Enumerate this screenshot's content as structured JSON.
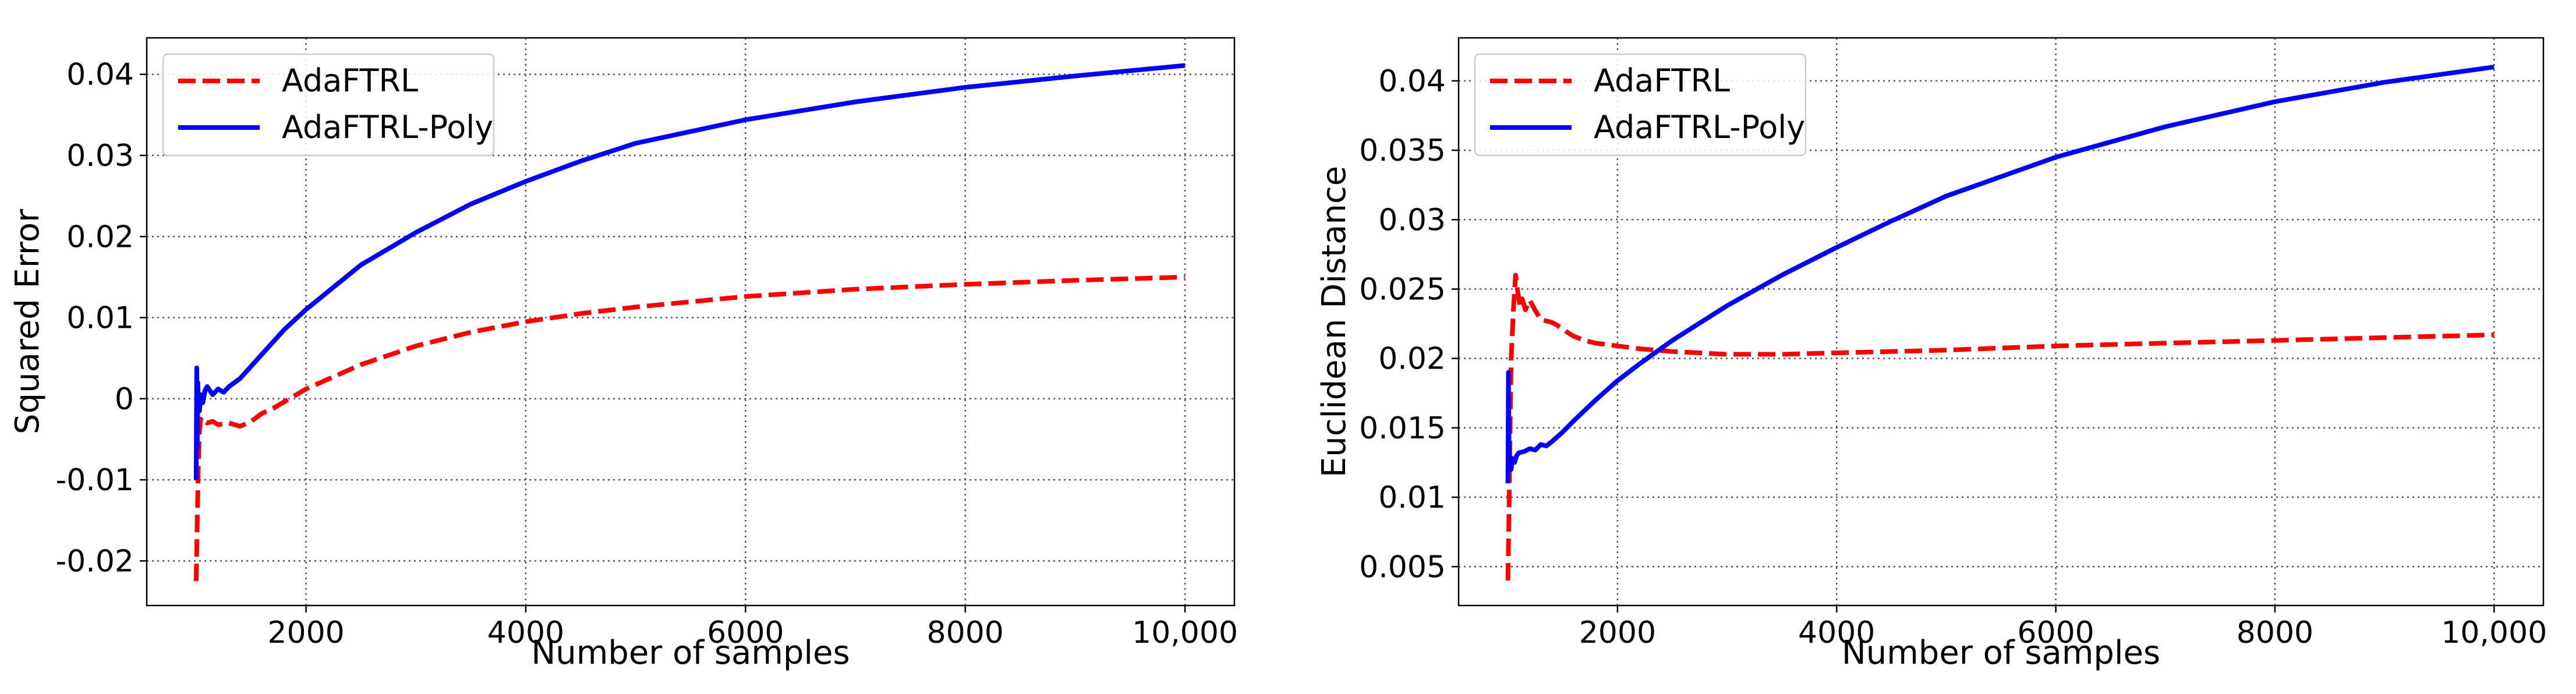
{
  "chart_data": [
    {
      "type": "line",
      "xlabel": "Number of samples",
      "ylabel": "Squared Error",
      "xlim": [
        550,
        10450
      ],
      "ylim": [
        -0.0255,
        0.0445
      ],
      "xticks": [
        {
          "v": 2000,
          "label": "2000"
        },
        {
          "v": 4000,
          "label": "4000"
        },
        {
          "v": 6000,
          "label": "6000"
        },
        {
          "v": 8000,
          "label": "8000"
        },
        {
          "v": 10000,
          "label": "10,000"
        }
      ],
      "yticks": [
        {
          "v": -0.02,
          "label": "-0.02"
        },
        {
          "v": -0.01,
          "label": "-0.01"
        },
        {
          "v": 0,
          "label": "0"
        },
        {
          "v": 0.01,
          "label": "0.01"
        },
        {
          "v": 0.02,
          "label": "0.02"
        },
        {
          "v": 0.03,
          "label": "0.03"
        },
        {
          "v": 0.04,
          "label": "0.04"
        }
      ],
      "grid": true,
      "legend_position": "upper-left",
      "series": [
        {
          "name": "AdaFTRL",
          "color": "#ff0000",
          "dashed": true,
          "x": [
            1000,
            1010,
            1020,
            1030,
            1040,
            1060,
            1080,
            1100,
            1150,
            1200,
            1300,
            1400,
            1500,
            1600,
            1700,
            2000,
            2500,
            3000,
            3500,
            4000,
            4500,
            5000,
            6000,
            7000,
            8000,
            9000,
            10000
          ],
          "y": [
            -0.0225,
            -0.015,
            -0.008,
            -0.004,
            -0.0025,
            -0.003,
            -0.0028,
            -0.003,
            -0.0028,
            -0.0032,
            -0.003,
            -0.0034,
            -0.0028,
            -0.0018,
            -0.0012,
            0.0012,
            0.0042,
            0.0065,
            0.0082,
            0.0095,
            0.0105,
            0.0113,
            0.0126,
            0.0135,
            0.0141,
            0.0146,
            0.015
          ]
        },
        {
          "name": "AdaFTRL-Poly",
          "color": "#0000ff",
          "dashed": false,
          "x": [
            1000,
            1005,
            1010,
            1015,
            1020,
            1030,
            1040,
            1060,
            1080,
            1100,
            1150,
            1200,
            1250,
            1300,
            1350,
            1400,
            1500,
            1600,
            1800,
            2000,
            2500,
            3000,
            3500,
            4000,
            4500,
            5000,
            6000,
            7000,
            8000,
            9000,
            10000
          ],
          "y": [
            -0.01,
            0.0038,
            -0.006,
            0.002,
            -0.001,
            -0.0015,
            0.0005,
            -0.0005,
            0.001,
            0.0015,
            0.0005,
            0.0012,
            0.0008,
            0.0015,
            0.002,
            0.0025,
            0.004,
            0.0055,
            0.0085,
            0.011,
            0.0165,
            0.0205,
            0.024,
            0.0268,
            0.0293,
            0.0315,
            0.0344,
            0.0366,
            0.0384,
            0.0398,
            0.0411
          ]
        }
      ]
    },
    {
      "type": "line",
      "xlabel": "Number of samples",
      "ylabel": "Euclidean Distance",
      "xlim": [
        550,
        10450
      ],
      "ylim": [
        0.0022,
        0.0431
      ],
      "xticks": [
        {
          "v": 2000,
          "label": "2000"
        },
        {
          "v": 4000,
          "label": "4000"
        },
        {
          "v": 6000,
          "label": "6000"
        },
        {
          "v": 8000,
          "label": "8000"
        },
        {
          "v": 10000,
          "label": "10,000"
        }
      ],
      "yticks": [
        {
          "v": 0.005,
          "label": "0.005"
        },
        {
          "v": 0.01,
          "label": "0.01"
        },
        {
          "v": 0.015,
          "label": "0.015"
        },
        {
          "v": 0.02,
          "label": "0.02"
        },
        {
          "v": 0.025,
          "label": "0.025"
        },
        {
          "v": 0.03,
          "label": "0.03"
        },
        {
          "v": 0.035,
          "label": "0.035"
        },
        {
          "v": 0.04,
          "label": "0.04"
        }
      ],
      "grid": true,
      "legend_position": "upper-left",
      "series": [
        {
          "name": "AdaFTRL",
          "color": "#ff0000",
          "dashed": true,
          "x": [
            1000,
            1010,
            1020,
            1030,
            1050,
            1070,
            1090,
            1110,
            1130,
            1160,
            1200,
            1240,
            1270,
            1300,
            1350,
            1400,
            1450,
            1500,
            1600,
            1700,
            1800,
            2000,
            2200,
            2500,
            3000,
            3500,
            4000,
            4500,
            5000,
            6000,
            7000,
            8000,
            9000,
            10000
          ],
          "y": [
            0.004,
            0.009,
            0.015,
            0.02,
            0.0235,
            0.026,
            0.0248,
            0.0238,
            0.0243,
            0.0235,
            0.0242,
            0.0236,
            0.0232,
            0.0228,
            0.0227,
            0.0226,
            0.0224,
            0.0221,
            0.0216,
            0.0213,
            0.0211,
            0.0209,
            0.0207,
            0.0205,
            0.0203,
            0.0203,
            0.0204,
            0.0205,
            0.0206,
            0.0209,
            0.0211,
            0.0213,
            0.0215,
            0.0217
          ]
        },
        {
          "name": "AdaFTRL-Poly",
          "color": "#0000ff",
          "dashed": false,
          "x": [
            1000,
            1005,
            1010,
            1015,
            1020,
            1030,
            1040,
            1060,
            1080,
            1100,
            1150,
            1200,
            1250,
            1300,
            1350,
            1400,
            1500,
            1600,
            1800,
            2000,
            2200,
            2500,
            3000,
            3500,
            4000,
            4500,
            5000,
            6000,
            7000,
            8000,
            9000,
            10000
          ],
          "y": [
            0.011,
            0.019,
            0.0135,
            0.0128,
            0.0125,
            0.012,
            0.0128,
            0.0125,
            0.013,
            0.0132,
            0.0133,
            0.0135,
            0.0134,
            0.0138,
            0.0137,
            0.014,
            0.0147,
            0.0155,
            0.017,
            0.0184,
            0.0196,
            0.0213,
            0.0238,
            0.026,
            0.028,
            0.0299,
            0.0317,
            0.0345,
            0.0367,
            0.0385,
            0.0399,
            0.041
          ]
        }
      ]
    }
  ]
}
